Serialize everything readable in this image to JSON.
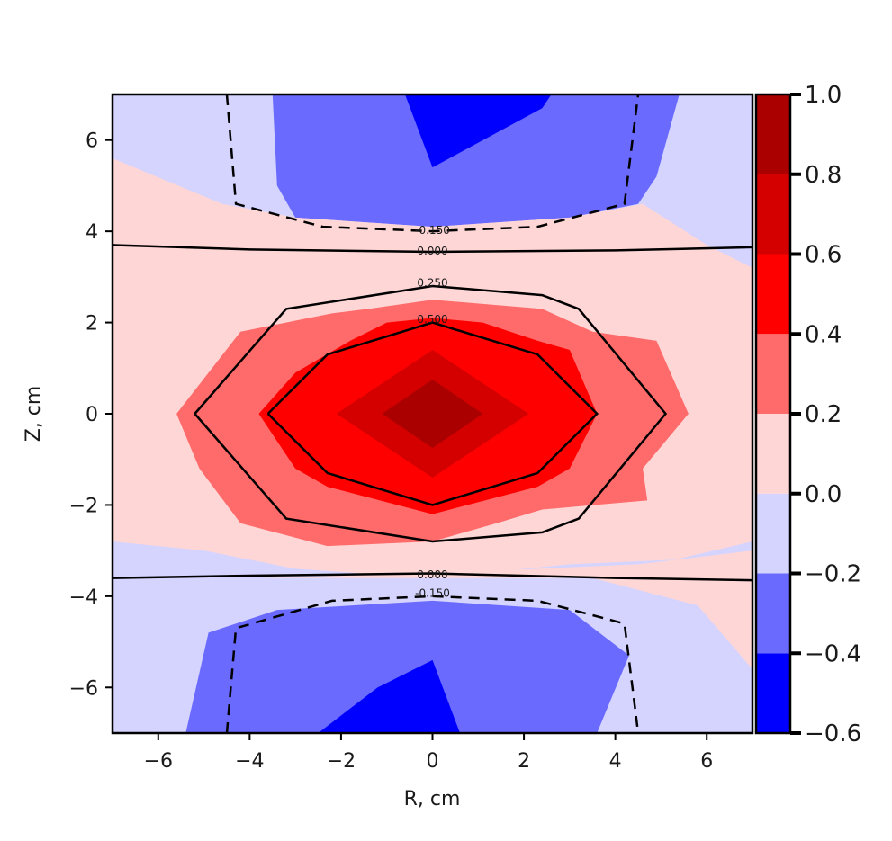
{
  "chart_data": {
    "type": "contour",
    "title": "",
    "xlabel": "R, cm",
    "ylabel": "Z, cm",
    "xlim": [
      -7,
      7
    ],
    "ylim": [
      -7,
      7
    ],
    "xticks": [
      -6,
      -4,
      -2,
      0,
      2,
      4,
      6
    ],
    "yticks": [
      -6,
      -4,
      -2,
      0,
      2,
      4,
      6
    ],
    "xtick_labels": [
      "−6",
      "−4",
      "−2",
      "0",
      "2",
      "4",
      "6"
    ],
    "ytick_labels": [
      "−6",
      "−4",
      "−2",
      "0",
      "2",
      "4",
      "6"
    ],
    "colorbar": {
      "levels": [
        -0.6,
        -0.4,
        -0.2,
        0.0,
        0.2,
        0.4,
        0.6,
        0.8,
        1.0
      ],
      "tick_labels": [
        "−0.6",
        "−0.4",
        "−0.2",
        "0.0",
        "0.2",
        "0.4",
        "0.6",
        "0.8",
        "1.0"
      ],
      "colors": [
        "#0000ff",
        "#6a6aff",
        "#d4d4ff",
        "#ffd6d6",
        "#ff6a6a",
        "#ff0000",
        "#d40000",
        "#aa0000"
      ]
    },
    "filled_regions": [
      {
        "band": 2,
        "polygon": [
          [
            -7,
            7
          ],
          [
            7,
            7
          ],
          [
            7,
            -7
          ],
          [
            -7,
            -7
          ]
        ]
      },
      {
        "band": 1,
        "polygon": [
          [
            -3.5,
            7
          ],
          [
            5.4,
            7
          ],
          [
            4.9,
            5.2
          ],
          [
            4.5,
            4.6
          ],
          [
            3.0,
            4.3
          ],
          [
            0,
            4.1
          ],
          [
            -3.0,
            4.3
          ],
          [
            -3.4,
            5.0
          ],
          [
            -3.5,
            7
          ]
        ]
      },
      {
        "band": 0,
        "polygon": [
          [
            -0.6,
            7
          ],
          [
            2.6,
            7
          ],
          [
            2.4,
            6.7
          ],
          [
            0,
            5.4
          ],
          [
            -0.6,
            7
          ]
        ]
      },
      {
        "band": 1,
        "polygon": [
          [
            -5.4,
            -7
          ],
          [
            -4.9,
            -4.8
          ],
          [
            -3.4,
            -4.3
          ],
          [
            0,
            -4.1
          ],
          [
            3.0,
            -4.3
          ],
          [
            4.3,
            -5.3
          ],
          [
            3.6,
            -7
          ]
        ]
      },
      {
        "band": 0,
        "polygon": [
          [
            -2.5,
            -7
          ],
          [
            -1.2,
            -6.0
          ],
          [
            0,
            -5.4
          ],
          [
            0.6,
            -7
          ]
        ]
      },
      {
        "band": 3,
        "polygon": [
          [
            -7,
            5.6
          ],
          [
            -4.6,
            4.6
          ],
          [
            -3.0,
            4.3
          ],
          [
            0,
            4.1
          ],
          [
            3.0,
            4.3
          ],
          [
            4.6,
            4.6
          ],
          [
            6.0,
            3.7
          ],
          [
            7,
            3.2
          ],
          [
            7,
            -2.8
          ],
          [
            5.3,
            -3.2
          ],
          [
            3.0,
            -3.3
          ],
          [
            0,
            -3.6
          ],
          [
            -3.0,
            -3.4
          ],
          [
            -5.0,
            -3.0
          ],
          [
            -7,
            -2.8
          ]
        ]
      },
      {
        "band": 3,
        "polygon": [
          [
            -3.8,
            -3.6
          ],
          [
            3.5,
            -3.6
          ],
          [
            5.8,
            -4.2
          ],
          [
            7,
            -5.6
          ],
          [
            7,
            -3.0
          ],
          [
            4.5,
            -3.3
          ],
          [
            0,
            -3.5
          ]
        ]
      },
      {
        "band": 4,
        "polygon": [
          [
            -5.6,
            0
          ],
          [
            -4.2,
            1.8
          ],
          [
            -2.2,
            2.2
          ],
          [
            -1.4,
            2.3
          ],
          [
            0,
            2.5
          ],
          [
            2.4,
            2.3
          ],
          [
            3.5,
            1.8
          ],
          [
            4.9,
            1.6
          ],
          [
            5.6,
            0
          ],
          [
            4.6,
            -1.2
          ],
          [
            4.7,
            -1.9
          ],
          [
            2.4,
            -2.1
          ],
          [
            1.4,
            -2.4
          ],
          [
            0,
            -2.8
          ],
          [
            -2.3,
            -2.9
          ],
          [
            -4.2,
            -2.4
          ],
          [
            -5.1,
            -1.2
          ]
        ]
      },
      {
        "band": 5,
        "polygon": [
          [
            -3.8,
            0
          ],
          [
            -3.0,
            0.9
          ],
          [
            -1.8,
            1.6
          ],
          [
            -1.0,
            2.0
          ],
          [
            0,
            2.1
          ],
          [
            1.1,
            2.0
          ],
          [
            2.3,
            1.6
          ],
          [
            3.0,
            1.4
          ],
          [
            3.6,
            0
          ],
          [
            3.0,
            -1.2
          ],
          [
            2.3,
            -1.6
          ],
          [
            0,
            -2.2
          ],
          [
            -2.3,
            -1.6
          ],
          [
            -3.0,
            -1.2
          ]
        ]
      },
      {
        "band": 6,
        "polygon": [
          [
            -2.1,
            0
          ],
          [
            0,
            1.4
          ],
          [
            2.1,
            0
          ],
          [
            0,
            -1.4
          ]
        ]
      },
      {
        "band": 7,
        "polygon": [
          [
            -1.1,
            0
          ],
          [
            0,
            0.75
          ],
          [
            1.1,
            0
          ],
          [
            0,
            -0.75
          ]
        ]
      }
    ],
    "contour_lines": [
      {
        "level": -0.15,
        "label": "-0.150",
        "label_at": [
          0.0,
          4.0
        ],
        "style": "dashed",
        "points": [
          [
            -4.5,
            7
          ],
          [
            -4.3,
            4.6
          ],
          [
            -2.4,
            4.1
          ],
          [
            0,
            4.0
          ],
          [
            2.3,
            4.1
          ],
          [
            4.2,
            4.6
          ],
          [
            4.5,
            7
          ]
        ]
      },
      {
        "level": 0.0,
        "label": "0.000",
        "label_at": [
          0.0,
          3.55
        ],
        "style": "solid",
        "points": [
          [
            -7,
            3.7
          ],
          [
            -4,
            3.6
          ],
          [
            0,
            3.55
          ],
          [
            4,
            3.58
          ],
          [
            7,
            3.65
          ]
        ]
      },
      {
        "level": 0.25,
        "label": "0.250",
        "label_at": [
          0.0,
          2.85
        ],
        "style": "solid",
        "points": [
          [
            -5.2,
            0
          ],
          [
            -3.2,
            2.3
          ],
          [
            0,
            2.8
          ],
          [
            2.4,
            2.6
          ],
          [
            3.2,
            2.3
          ],
          [
            5.1,
            0
          ],
          [
            3.2,
            -2.3
          ],
          [
            2.4,
            -2.6
          ],
          [
            0,
            -2.8
          ],
          [
            -3.2,
            -2.3
          ],
          [
            -5.2,
            0
          ]
        ]
      },
      {
        "level": 0.5,
        "label": "0.500",
        "label_at": [
          0.0,
          2.05
        ],
        "style": "solid",
        "points": [
          [
            -3.6,
            0
          ],
          [
            -2.3,
            1.3
          ],
          [
            0,
            2.0
          ],
          [
            2.3,
            1.3
          ],
          [
            3.6,
            0
          ],
          [
            2.3,
            -1.3
          ],
          [
            0,
            -2.0
          ],
          [
            -2.3,
            -1.3
          ],
          [
            -3.6,
            0
          ]
        ]
      },
      {
        "level": 0.0,
        "label": "0.000",
        "label_at": [
          0.0,
          -3.55
        ],
        "style": "solid",
        "points": [
          [
            -7,
            -3.6
          ],
          [
            -4,
            -3.55
          ],
          [
            0,
            -3.5
          ],
          [
            4,
            -3.6
          ],
          [
            7,
            -3.65
          ]
        ]
      },
      {
        "level": -0.15,
        "label": "-0.150",
        "label_at": [
          0.0,
          -3.95
        ],
        "style": "dashed",
        "points": [
          [
            -4.5,
            -7
          ],
          [
            -4.3,
            -4.7
          ],
          [
            -2.2,
            -4.1
          ],
          [
            0,
            -4.0
          ],
          [
            2.3,
            -4.1
          ],
          [
            4.2,
            -4.6
          ],
          [
            4.5,
            -7
          ]
        ]
      }
    ]
  }
}
